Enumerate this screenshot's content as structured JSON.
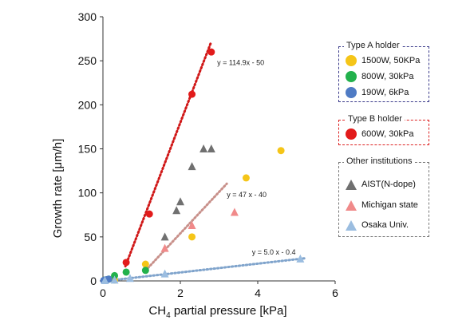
{
  "chart_data": {
    "type": "scatter",
    "xlabel_main": "CH",
    "xlabel_sub": "4",
    "xlabel_rest": " partial pressure [kPa]",
    "ylabel": "Growth rate [μm/h]",
    "xlim": [
      0,
      6
    ],
    "ylim": [
      0,
      300
    ],
    "xticks": [
      "0",
      "2",
      "4",
      "6"
    ],
    "yticks": [
      "0",
      "50",
      "100",
      "150",
      "200",
      "250",
      "300"
    ],
    "grid": false,
    "series": [
      {
        "name": "1500W, 50KPa",
        "group": "Type A holder",
        "marker": "circle",
        "color": "#f5c518",
        "x": [
          0.3,
          1.1,
          2.3,
          3.7,
          4.6
        ],
        "y": [
          1,
          19,
          50,
          117,
          148
        ]
      },
      {
        "name": "800W, 30kPa",
        "group": "Type A holder",
        "marker": "circle",
        "color": "#22b14c",
        "x": [
          0.05,
          0.15,
          0.3,
          0.6,
          1.1
        ],
        "y": [
          1,
          2,
          6,
          10,
          12
        ]
      },
      {
        "name": "190W, 6kPa",
        "group": "Type A holder",
        "marker": "circle",
        "color": "#4f7bc4",
        "x": [
          0.02,
          0.06,
          0.1,
          0.15
        ],
        "y": [
          0.5,
          1,
          1.5,
          2
        ]
      },
      {
        "name": "600W, 30kPa",
        "group": "Type B holder",
        "marker": "circle",
        "color": "#e21b1b",
        "x": [
          0.6,
          1.2,
          2.3,
          2.8
        ],
        "y": [
          21,
          76,
          212,
          260
        ]
      },
      {
        "name": "AIST(N-dope)",
        "group": "Other institutions",
        "marker": "triangle",
        "color": "#707070",
        "x": [
          1.6,
          1.9,
          2.0,
          2.3,
          2.6,
          2.8
        ],
        "y": [
          50,
          80,
          90,
          130,
          150,
          150
        ]
      },
      {
        "name": "Michigan  state",
        "group": "Other institutions",
        "marker": "triangle",
        "color": "#f08a8a",
        "x": [
          1.6,
          2.3,
          3.4
        ],
        "y": [
          37,
          63,
          78
        ]
      },
      {
        "name": "Osaka Univ.",
        "group": "Other institutions",
        "marker": "triangle",
        "color": "#9bbde0",
        "x": [
          0.05,
          0.3,
          0.7,
          1.6,
          5.1
        ],
        "y": [
          0.5,
          1,
          3,
          8,
          25
        ]
      }
    ],
    "trendlines": [
      {
        "label": "y = 114.9x - 50",
        "slope": 114.9,
        "intercept": -50,
        "x_range": [
          0.58,
          2.8
        ],
        "color": "#d01818",
        "label_at": [
          2.95,
          245
        ]
      },
      {
        "label": "y = 47 x - 40",
        "slope": 47,
        "intercept": -40,
        "x_range": [
          1.1,
          3.2
        ],
        "color": "#c8908a",
        "label_at": [
          3.2,
          95
        ]
      },
      {
        "label": "y = 5.0 x - 0.4",
        "slope": 5.0,
        "intercept": -0.4,
        "x_range": [
          0.1,
          5.2
        ],
        "color": "#80a4cc",
        "label_at": [
          3.85,
          30
        ]
      }
    ]
  },
  "legend": {
    "groups": [
      {
        "title": "Type A holder",
        "border": "#3a3a8a",
        "items": [
          {
            "label": "1500W, 50KPa",
            "color": "#f5c518",
            "marker": "circle"
          },
          {
            "label": "800W, 30kPa",
            "color": "#22b14c",
            "marker": "circle"
          },
          {
            "label": "190W, 6kPa",
            "color": "#4f7bc4",
            "marker": "circle"
          }
        ]
      },
      {
        "title": "Type B holder",
        "border": "#d22",
        "items": [
          {
            "label": "600W, 30kPa",
            "color": "#e21b1b",
            "marker": "circle"
          }
        ]
      },
      {
        "title": "Other institutions",
        "border": "#777",
        "items": [
          {
            "label": "AIST(N-dope)",
            "color": "#707070",
            "marker": "triangle"
          },
          {
            "label": "Michigan  state",
            "color": "#f08a8a",
            "marker": "triangle"
          },
          {
            "label": "Osaka Univ.",
            "color": "#9bbde0",
            "marker": "triangle"
          }
        ]
      }
    ]
  }
}
